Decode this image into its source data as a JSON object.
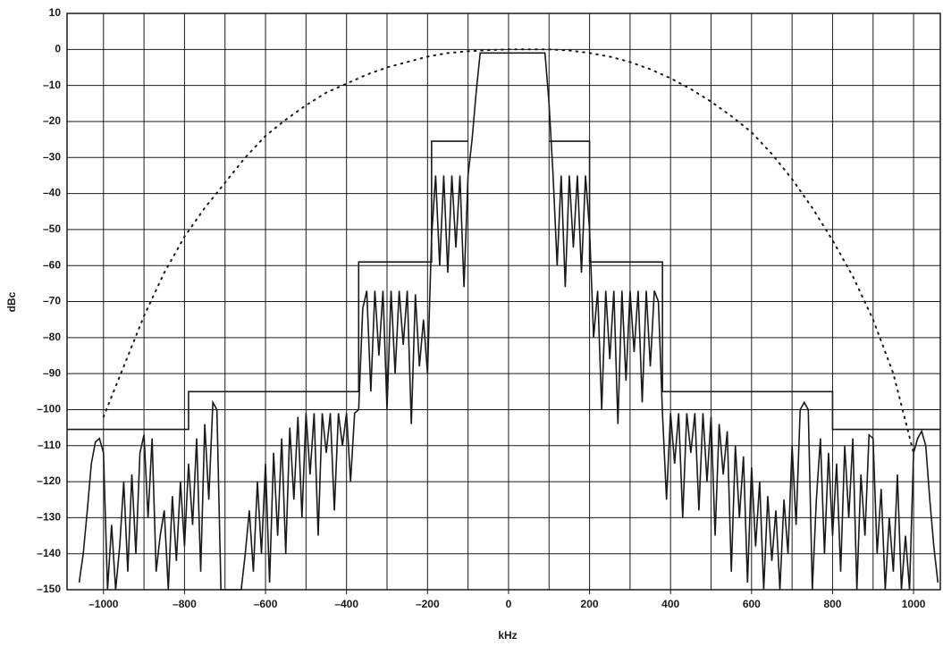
{
  "chart_data": {
    "type": "line",
    "xlabel": "kHz",
    "ylabel": "dBc",
    "xlim": [
      -1090,
      1066
    ],
    "ylim": [
      -150,
      10
    ],
    "xticks": [
      {
        "value": -1000,
        "label": "–1000"
      },
      {
        "value": -800,
        "label": "–800"
      },
      {
        "value": -600,
        "label": "–600"
      },
      {
        "value": -400,
        "label": "–400"
      },
      {
        "value": -200,
        "label": "–200"
      },
      0,
      200,
      400,
      600,
      800,
      1000
    ],
    "yticks": [
      10,
      0,
      {
        "value": -10,
        "label": "–10"
      },
      {
        "value": -20,
        "label": "–20"
      },
      {
        "value": -30,
        "label": "–30"
      },
      {
        "value": -40,
        "label": "–40"
      },
      {
        "value": -50,
        "label": "–50"
      },
      {
        "value": -60,
        "label": "–60"
      },
      {
        "value": -70,
        "label": "–70"
      },
      {
        "value": -80,
        "label": "–80"
      },
      {
        "value": -90,
        "label": "–90"
      },
      {
        "value": -100,
        "label": "–100"
      },
      {
        "value": -110,
        "label": "–110"
      },
      {
        "value": -120,
        "label": "–120"
      },
      {
        "value": -130,
        "label": "–130"
      },
      {
        "value": -140,
        "label": "–140"
      },
      {
        "value": -150,
        "label": "–150"
      }
    ],
    "xgrid": [
      -1000,
      -900,
      -800,
      -700,
      -600,
      -500,
      -400,
      -300,
      -200,
      -100,
      0,
      100,
      200,
      300,
      400,
      500,
      600,
      700,
      800,
      900,
      1000
    ],
    "grid": true,
    "series": [
      {
        "color": "#1a1a1a",
        "style": "solid",
        "x": [
          -1060,
          -1050,
          -1040,
          -1030,
          -1020,
          -1010,
          -1000,
          -990,
          -980,
          -970,
          -960,
          -950,
          -940,
          -930,
          -920,
          -910,
          -900,
          -890,
          -880,
          -870,
          -860,
          -850,
          -840,
          -830,
          -820,
          -810,
          -800,
          -790,
          -780,
          -770,
          -760,
          -750,
          -740,
          -730,
          -720,
          -710,
          -700,
          -690,
          -680,
          -670,
          -660,
          -650,
          -640,
          -630,
          -620,
          -610,
          -600,
          -590,
          -580,
          -570,
          -560,
          -550,
          -540,
          -530,
          -520,
          -510,
          -500,
          -490,
          -480,
          -470,
          -460,
          -450,
          -440,
          -430,
          -420,
          -410,
          -400,
          -390,
          -380,
          -370,
          -360,
          -350,
          -340,
          -330,
          -320,
          -310,
          -300,
          -290,
          -280,
          -270,
          -260,
          -250,
          -240,
          -230,
          -220,
          -210,
          -200,
          -190,
          -180,
          -170,
          -160,
          -150,
          -140,
          -130,
          -120,
          -110,
          -100,
          -90,
          -80,
          -70,
          -60,
          -50,
          -40,
          -30,
          -20,
          -10,
          0,
          10,
          20,
          30,
          40,
          50,
          60,
          70,
          80,
          90,
          100,
          110,
          120,
          130,
          140,
          150,
          160,
          170,
          180,
          190,
          200,
          210,
          220,
          230,
          240,
          250,
          260,
          270,
          280,
          290,
          300,
          310,
          320,
          330,
          340,
          350,
          360,
          370,
          380,
          390,
          400,
          410,
          420,
          430,
          440,
          450,
          460,
          470,
          480,
          490,
          500,
          510,
          520,
          530,
          540,
          550,
          560,
          570,
          580,
          590,
          600,
          610,
          620,
          630,
          640,
          650,
          660,
          670,
          680,
          690,
          700,
          710,
          720,
          730,
          740,
          750,
          760,
          770,
          780,
          790,
          800,
          810,
          820,
          830,
          840,
          850,
          860,
          870,
          880,
          890,
          900,
          910,
          920,
          930,
          940,
          950,
          960,
          970,
          980,
          990,
          1000,
          1010,
          1020,
          1030,
          1040,
          1050,
          1060
        ],
        "values": [
          -148,
          -140,
          -128,
          -115,
          -109,
          -108,
          -112,
          -150,
          -132,
          -150,
          -138,
          -120,
          -145,
          -118,
          -140,
          -112,
          -107,
          -130,
          -108,
          -145,
          -135,
          -128,
          -150,
          -124,
          -142,
          -120,
          -138,
          -115,
          -132,
          -108,
          -145,
          -104,
          -125,
          -98,
          -100,
          -150,
          -150,
          -150,
          -150,
          -150,
          -150,
          -140,
          -128,
          -145,
          -120,
          -140,
          -115,
          -148,
          -112,
          -135,
          -108,
          -140,
          -105,
          -125,
          -102,
          -130,
          -101,
          -118,
          -101,
          -135,
          -101,
          -112,
          -101,
          -128,
          -101,
          -110,
          -101,
          -120,
          -101,
          -100,
          -72,
          -67,
          -95,
          -67,
          -85,
          -67,
          -100,
          -67,
          -90,
          -67,
          -82,
          -67,
          -104,
          -68,
          -88,
          -75,
          -90,
          -52,
          -35,
          -60,
          -35,
          -62,
          -35,
          -55,
          -35,
          -66,
          -35,
          -25,
          -12,
          -1,
          -1,
          -1,
          -1,
          -1,
          -1,
          -1,
          -1,
          -1,
          -1,
          -1,
          -1,
          -1,
          -1,
          -1,
          -1,
          -1,
          -15,
          -35,
          -60,
          -35,
          -66,
          -35,
          -55,
          -35,
          -62,
          -35,
          -50,
          -80,
          -67,
          -100,
          -67,
          -86,
          -67,
          -104,
          -67,
          -92,
          -67,
          -84,
          -67,
          -98,
          -67,
          -88,
          -67,
          -70,
          -101,
          -125,
          -101,
          -115,
          -101,
          -130,
          -101,
          -112,
          -101,
          -128,
          -101,
          -120,
          -102,
          -135,
          -104,
          -118,
          -106,
          -145,
          -110,
          -130,
          -113,
          -148,
          -116,
          -138,
          -120,
          -150,
          -124,
          -142,
          -128,
          -150,
          -125,
          -140,
          -110,
          -132,
          -100,
          -98,
          -100,
          -150,
          -125,
          -108,
          -140,
          -112,
          -135,
          -115,
          -145,
          -110,
          -130,
          -108,
          -150,
          -118,
          -135,
          -107,
          -108,
          -140,
          -122,
          -150,
          -130,
          -145,
          -118,
          -150,
          -135,
          -150,
          -112,
          -108,
          -106,
          -110,
          -125,
          -138,
          -148
        ]
      },
      {
        "color": "#1a1a1a",
        "style": "solid",
        "x": [
          -1090,
          -790,
          -790,
          -370,
          -370,
          -190,
          -190,
          -100,
          0,
          100,
          200,
          200,
          380,
          380,
          800,
          800,
          1066
        ],
        "values": [
          -105.5,
          -105.5,
          -95,
          -95,
          -59,
          -59,
          -25.5,
          -25.5,
          null,
          -25.5,
          -25.5,
          -59,
          -59,
          -95,
          -95,
          -105.5,
          -105.5
        ]
      },
      {
        "color": "#1a1a1a",
        "style": "dotted",
        "x": [
          -1000,
          -950,
          -900,
          -850,
          -800,
          -750,
          -700,
          -650,
          -600,
          -550,
          -500,
          -450,
          -400,
          -350,
          -300,
          -250,
          -200,
          -150,
          -100,
          -50,
          0,
          50,
          100,
          150,
          200,
          250,
          300,
          350,
          400,
          450,
          500,
          550,
          600,
          650,
          700,
          750,
          800,
          850,
          900,
          950,
          1000
        ],
        "values": [
          -102,
          -88,
          -74,
          -62,
          -52,
          -44,
          -37,
          -30,
          -24,
          -19.5,
          -15.5,
          -12,
          -9.5,
          -7,
          -5,
          -3.5,
          -2,
          -1,
          -0.5,
          -0.2,
          0,
          0,
          0,
          -0.3,
          -1,
          -2,
          -3.5,
          -5.5,
          -8,
          -11,
          -14.5,
          -18.5,
          -23,
          -29,
          -36,
          -44,
          -53,
          -63,
          -75,
          -90,
          -112
        ]
      }
    ]
  }
}
